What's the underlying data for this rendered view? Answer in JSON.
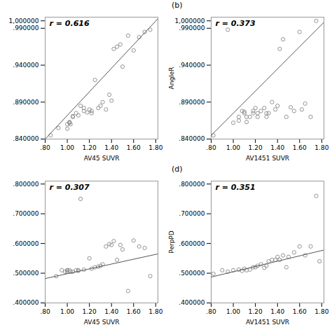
{
  "chart_data": [
    {
      "type": "scatter",
      "xlabel": "AV45 SUVR",
      "annotations": [
        "r = 0.616"
      ],
      "xlim": [
        0.8,
        1.82
      ],
      "ylim": [
        0.84,
        1.005
      ],
      "xticks": [
        {
          "value": 0.8,
          "label": ".80"
        },
        {
          "value": 1.0,
          "label": "1.00"
        },
        {
          "value": 1.2,
          "label": "1.20"
        },
        {
          "value": 1.4,
          "label": "1.40"
        },
        {
          "value": 1.6,
          "label": "1.60"
        },
        {
          "value": 1.8,
          "label": "1.80"
        }
      ],
      "yticks": [
        {
          "value": 1.0,
          "label": "1,000000"
        },
        {
          "value": 0.84,
          "label": ".840000"
        },
        {
          "value": 0.89,
          "label": ".890000"
        },
        {
          "value": 0.94,
          "label": ".940000"
        },
        {
          "value": 0.99,
          "label": ".990000"
        }
      ],
      "series": [
        {
          "type": "scatter",
          "color": "#888888",
          "marker": "circle",
          "x": [
            0.85,
            0.92,
            1.0,
            1.0,
            1.02,
            1.02,
            1.02,
            1.03,
            1.05,
            1.05,
            1.08,
            1.1,
            1.12,
            1.15,
            1.15,
            1.18,
            1.2,
            1.22,
            1.22,
            1.25,
            1.28,
            1.3,
            1.32,
            1.35,
            1.38,
            1.4,
            1.42,
            1.45,
            1.48,
            1.5,
            1.55,
            1.6,
            1.65,
            1.7,
            1.75
          ],
          "values": [
            0.845,
            0.855,
            0.854,
            0.86,
            0.862,
            0.862,
            0.863,
            0.86,
            0.87,
            0.871,
            0.875,
            0.872,
            0.885,
            0.882,
            0.878,
            0.876,
            0.88,
            0.878,
            0.875,
            0.92,
            0.882,
            0.885,
            0.89,
            0.88,
            0.9,
            0.892,
            0.962,
            0.965,
            0.968,
            0.938,
            0.98,
            0.96,
            0.978,
            0.985,
            0.988
          ]
        },
        {
          "type": "line",
          "color": "#555555",
          "x": [
            0.8,
            1.82
          ],
          "values": [
            0.84,
            1.003
          ]
        }
      ]
    },
    {
      "type": "scatter",
      "title": "(b)",
      "xlabel": "AV1451 SUVR",
      "ylabel": "AngleR",
      "annotations": [
        "r = 0.373"
      ],
      "xlim": [
        0.8,
        1.82
      ],
      "ylim": [
        0.84,
        1.005
      ],
      "xticks": [
        {
          "value": 0.8,
          "label": ".80"
        },
        {
          "value": 1.0,
          "label": "1.00"
        },
        {
          "value": 1.2,
          "label": "1.20"
        },
        {
          "value": 1.4,
          "label": "1.40"
        },
        {
          "value": 1.6,
          "label": "1.60"
        },
        {
          "value": 1.8,
          "label": "1.80"
        }
      ],
      "yticks": [
        {
          "value": 1.0,
          "label": "1,000000"
        },
        {
          "value": 0.84,
          "label": ".840000"
        },
        {
          "value": 0.89,
          "label": ".890000"
        },
        {
          "value": 0.94,
          "label": ".940000"
        },
        {
          "value": 0.99,
          "label": ".990000"
        }
      ],
      "series": [
        {
          "type": "scatter",
          "color": "#888888",
          "marker": "circle",
          "x": [
            0.82,
            0.95,
            1.0,
            1.05,
            1.05,
            1.08,
            1.1,
            1.1,
            1.12,
            1.12,
            1.15,
            1.18,
            1.18,
            1.2,
            1.22,
            1.22,
            1.25,
            1.28,
            1.3,
            1.3,
            1.32,
            1.35,
            1.38,
            1.4,
            1.42,
            1.45,
            1.48,
            1.52,
            1.55,
            1.6,
            1.62,
            1.65,
            1.7,
            1.75
          ],
          "values": [
            0.845,
            0.988,
            0.862,
            0.87,
            0.865,
            0.878,
            0.875,
            0.877,
            0.87,
            0.863,
            0.87,
            0.878,
            0.875,
            0.882,
            0.875,
            0.87,
            0.878,
            0.882,
            0.87,
            0.875,
            0.875,
            0.89,
            0.88,
            0.885,
            0.962,
            0.975,
            0.87,
            0.883,
            0.878,
            0.985,
            0.88,
            0.888,
            0.87,
            1.0
          ]
        },
        {
          "type": "line",
          "color": "#555555",
          "x": [
            0.8,
            1.82
          ],
          "values": [
            0.845,
            0.998
          ]
        }
      ]
    },
    {
      "type": "scatter",
      "xlabel": "AV45 SUVR",
      "annotations": [
        "r = 0.307"
      ],
      "xlim": [
        0.8,
        1.82
      ],
      "ylim": [
        0.4,
        0.81
      ],
      "xticks": [
        {
          "value": 0.8,
          "label": ".80"
        },
        {
          "value": 1.0,
          "label": "1.00"
        },
        {
          "value": 1.2,
          "label": "1.20"
        },
        {
          "value": 1.4,
          "label": "1.40"
        },
        {
          "value": 1.6,
          "label": "1.60"
        },
        {
          "value": 1.8,
          "label": "1.80"
        }
      ],
      "yticks": [
        {
          "value": 0.4,
          "label": ".400000"
        },
        {
          "value": 0.5,
          "label": ".500000"
        },
        {
          "value": 0.6,
          "label": ".600000"
        },
        {
          "value": 0.7,
          "label": ".700000"
        },
        {
          "value": 0.8,
          "label": ".800000"
        }
      ],
      "series": [
        {
          "type": "scatter",
          "color": "#888888",
          "marker": "circle",
          "x": [
            0.9,
            0.95,
            0.98,
            1.0,
            1.0,
            1.0,
            1.02,
            1.03,
            1.05,
            1.08,
            1.1,
            1.1,
            1.12,
            1.15,
            1.2,
            1.22,
            1.25,
            1.28,
            1.3,
            1.32,
            1.35,
            1.38,
            1.4,
            1.42,
            1.45,
            1.48,
            1.5,
            1.55,
            1.6,
            1.65,
            1.7,
            1.75
          ],
          "values": [
            0.49,
            0.51,
            0.505,
            0.505,
            0.51,
            0.51,
            0.51,
            0.505,
            0.505,
            0.51,
            0.51,
            0.508,
            0.75,
            0.512,
            0.55,
            0.515,
            0.52,
            0.522,
            0.525,
            0.53,
            0.59,
            0.598,
            0.595,
            0.608,
            0.545,
            0.595,
            0.58,
            0.44,
            0.61,
            0.59,
            0.585,
            0.49
          ]
        },
        {
          "type": "line",
          "color": "#555555",
          "x": [
            0.8,
            1.82
          ],
          "values": [
            0.482,
            0.565
          ]
        }
      ]
    },
    {
      "type": "scatter",
      "title": "(d)",
      "xlabel": "AV1451 SUVR",
      "ylabel": "PerpPD",
      "annotations": [
        "r = 0.351"
      ],
      "xlim": [
        0.8,
        1.82
      ],
      "ylim": [
        0.4,
        0.81
      ],
      "xticks": [
        {
          "value": 0.8,
          "label": ".80"
        },
        {
          "value": 1.0,
          "label": "1.00"
        },
        {
          "value": 1.2,
          "label": "1.20"
        },
        {
          "value": 1.4,
          "label": "1.40"
        },
        {
          "value": 1.6,
          "label": "1.60"
        },
        {
          "value": 1.8,
          "label": "1.80"
        }
      ],
      "yticks": [
        {
          "value": 0.4,
          "label": ".400000"
        },
        {
          "value": 0.5,
          "label": ".500000"
        },
        {
          "value": 0.6,
          "label": ".600000"
        },
        {
          "value": 0.7,
          "label": ".700000"
        },
        {
          "value": 0.8,
          "label": ".800000"
        }
      ],
      "series": [
        {
          "type": "scatter",
          "color": "#888888",
          "marker": "circle",
          "x": [
            0.82,
            0.9,
            0.95,
            1.0,
            1.05,
            1.08,
            1.1,
            1.12,
            1.15,
            1.18,
            1.2,
            1.22,
            1.25,
            1.28,
            1.3,
            1.32,
            1.35,
            1.38,
            1.4,
            1.42,
            1.45,
            1.48,
            1.5,
            1.55,
            1.6,
            1.65,
            1.7,
            1.75,
            1.78
          ],
          "values": [
            0.498,
            0.51,
            0.505,
            0.51,
            0.512,
            0.508,
            0.515,
            0.51,
            0.512,
            0.52,
            0.52,
            0.525,
            0.53,
            0.518,
            0.525,
            0.54,
            0.545,
            0.545,
            0.555,
            0.545,
            0.56,
            0.52,
            0.555,
            0.57,
            0.59,
            0.56,
            0.59,
            0.76,
            0.54
          ]
        },
        {
          "type": "line",
          "color": "#555555",
          "x": [
            0.8,
            1.82
          ],
          "values": [
            0.487,
            0.578
          ]
        }
      ]
    }
  ]
}
